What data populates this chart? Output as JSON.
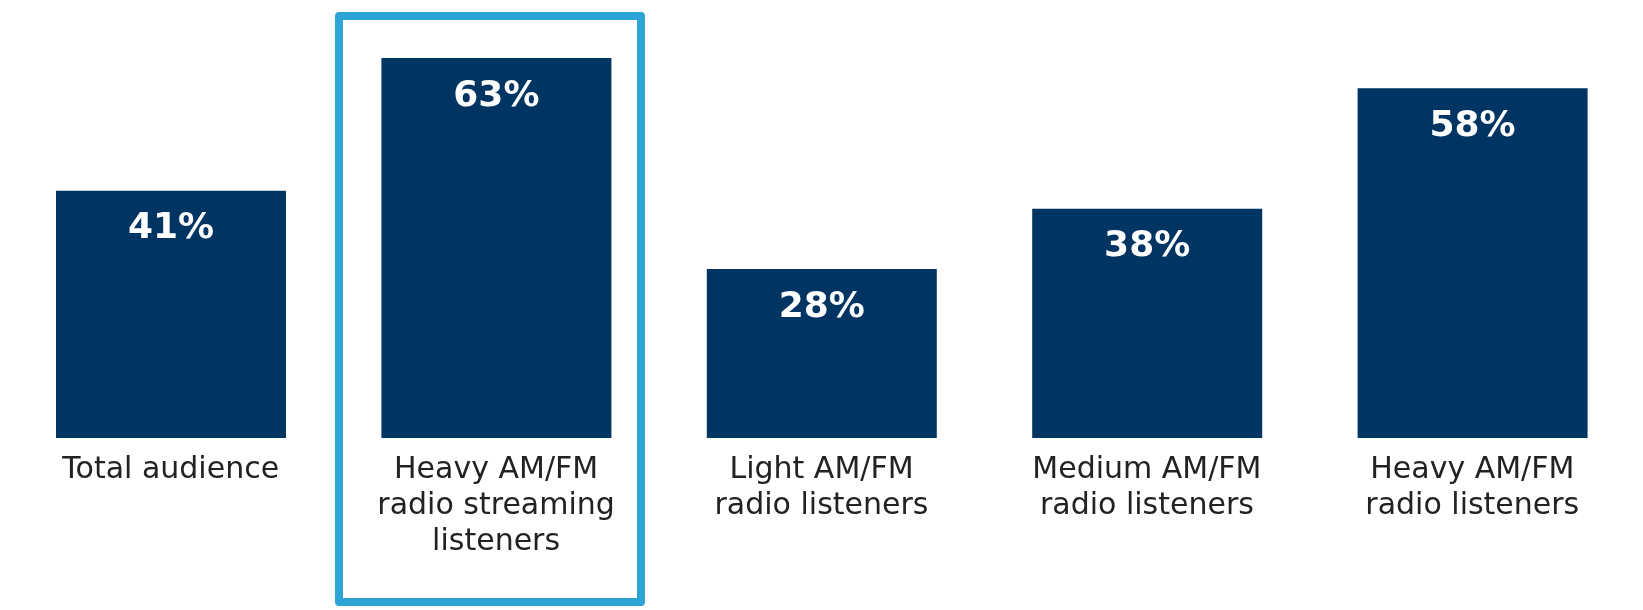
{
  "chart_data": {
    "type": "bar",
    "categories": [
      "Total audience",
      "Heavy AM/FM radio streaming listeners",
      "Light AM/FM radio listeners",
      "Medium AM/FM radio listeners",
      "Heavy AM/FM radio listeners"
    ],
    "values": [
      41,
      63,
      28,
      38,
      58
    ],
    "color": "#003462",
    "data_labels": true,
    "value_labels": [
      "41%",
      "63%",
      "28%",
      "38%",
      "58%"
    ]
  }
}
